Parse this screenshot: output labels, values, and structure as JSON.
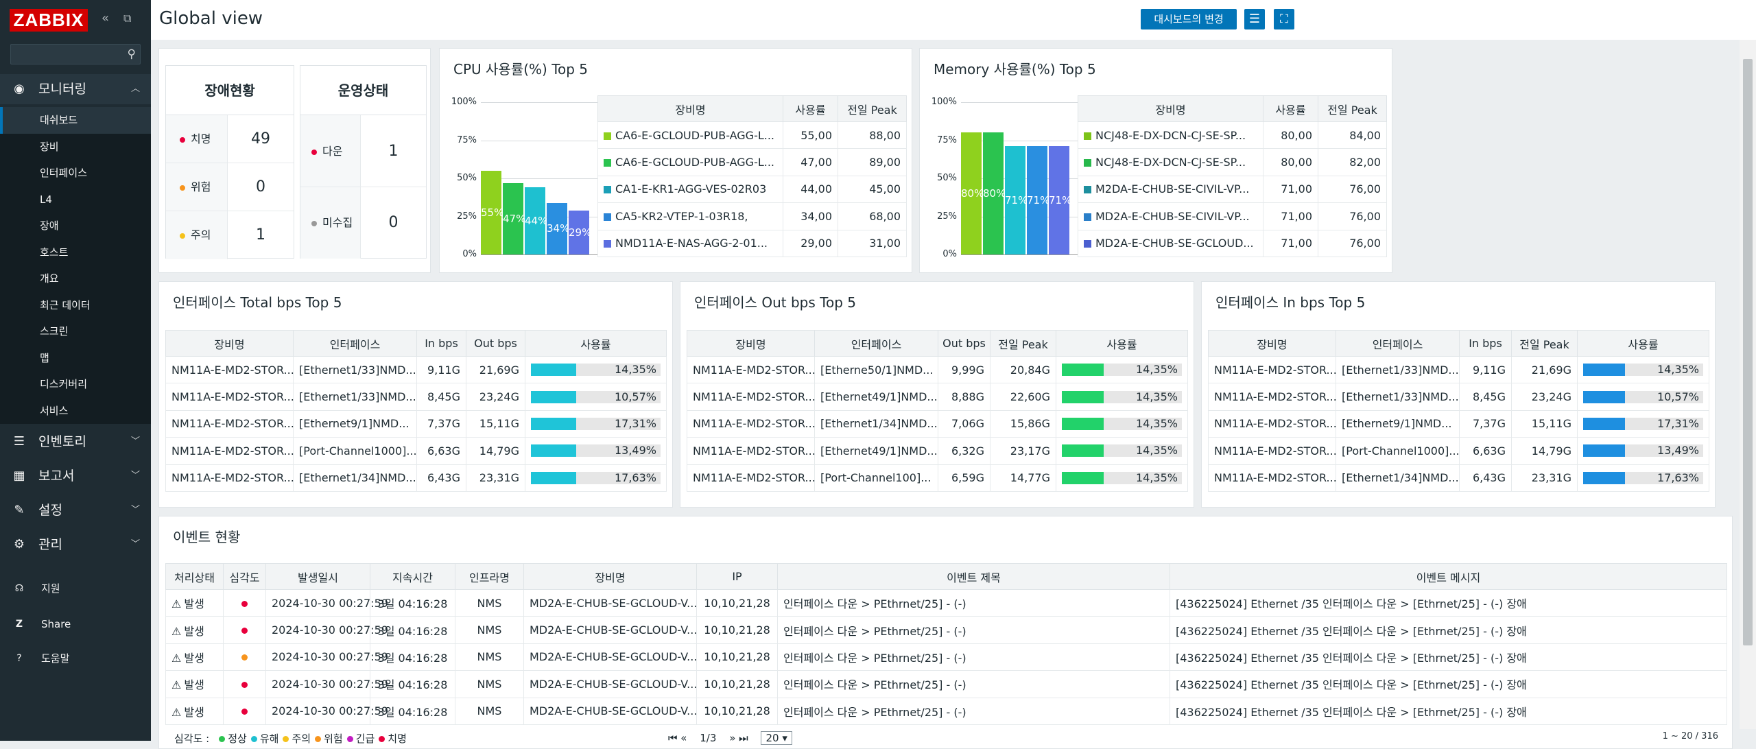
{
  "sidebar": {
    "logo": "ZABBIX",
    "collapse_icon": "collapse-icon",
    "kiosk_icon": "kiosk-icon",
    "search": {
      "value": "",
      "placeholder": ""
    },
    "monitoring": {
      "label": "모니터링",
      "items": [
        "대쉬보드",
        "장비",
        "인터페이스",
        "L4",
        "장애",
        "호스트",
        "개요",
        "최근 데이터",
        "스크린",
        "맵",
        "디스커버리",
        "서비스"
      ],
      "active": "대쉬보드"
    },
    "sections": [
      "인벤토리",
      "보고서",
      "설정",
      "관리"
    ],
    "footer": [
      "지원",
      "Share",
      "도움말"
    ]
  },
  "header": {
    "title": "Global view",
    "change_button": "대시보드의 변경",
    "menu_icon": "menu-icon",
    "fullscreen_icon": "fullscreen-icon"
  },
  "problem_status": {
    "title": "장애현황",
    "rows": [
      {
        "label": "치명",
        "value": "49",
        "color": "#e45959"
      },
      {
        "label": "위험",
        "value": "0",
        "color": "#f7941d"
      },
      {
        "label": "주의",
        "value": "1",
        "color": "#f5c21b"
      }
    ]
  },
  "op_status": {
    "title": "운영상태",
    "rows": [
      {
        "label": "다운",
        "value": "1",
        "color": "#e45959"
      },
      {
        "label": "미수집",
        "value": "0",
        "color": "#999999"
      }
    ]
  },
  "cpu": {
    "title": "CPU 사용률(%) Top 5",
    "cols": [
      "장비명",
      "사용률",
      "전일 Peak"
    ],
    "rows": [
      {
        "name": "CA6-E-GCLOUD-PUB-AGG-L...",
        "use": "55,00",
        "peak": "88,00",
        "color": "#8fd11e"
      },
      {
        "name": "CA6-E-GCLOUD-PUB-AGG-L...",
        "use": "47,00",
        "peak": "89,00",
        "color": "#2bc34f"
      },
      {
        "name": "CA1-E-KR1-AGG-VES-02R03",
        "use": "44,00",
        "peak": "45,00",
        "color": "#1b9fb7"
      },
      {
        "name": "CA5-KR2-VTEP-1-03R18,",
        "use": "34,00",
        "peak": "68,00",
        "color": "#2a84d6"
      },
      {
        "name": "NMD11A-E-NAS-AGG-2-01...",
        "use": "29,00",
        "peak": "31,00",
        "color": "#5b6ee0"
      }
    ]
  },
  "memory": {
    "title": "Memory 사용률(%) Top 5",
    "cols": [
      "장비명",
      "사용률",
      "전일 Peak"
    ],
    "rows": [
      {
        "name": "NCJ48-E-DX-DCN-CJ-SE-SP...",
        "use": "80,00",
        "peak": "84,00",
        "color": "#7cc319"
      },
      {
        "name": "NCJ48-E-DX-DCN-CJ-SE-SP...",
        "use": "80,00",
        "peak": "82,00",
        "color": "#27b84b"
      },
      {
        "name": "M2DA-E-CHUB-SE-CIVIL-VP...",
        "use": "71,00",
        "peak": "76,00",
        "color": "#1d8f9e"
      },
      {
        "name": "MD2A-E-CHUB-SE-CIVIL-VP...",
        "use": "71,00",
        "peak": "76,00",
        "color": "#2a7fc9"
      },
      {
        "name": "MD2A-E-CHUB-SE-GCLOUD...",
        "use": "71,00",
        "peak": "76,00",
        "color": "#4b5fd0"
      }
    ]
  },
  "chart_data": [
    {
      "type": "bar",
      "title": "CPU 사용률(%) Top 5",
      "categories": [
        "CA6-E-GCLOUD-PUB-AGG-L...",
        "CA6-E-GCLOUD-PUB-AGG-L...",
        "CA1-E-KR1-AGG-VES-02R03",
        "CA5-KR2-VTEP-1-03R18,",
        "NMD11A-E-NAS-AGG-2-01..."
      ],
      "values": [
        55,
        47,
        44,
        34,
        29
      ],
      "labels": [
        "55%",
        "47%",
        "44%",
        "34%",
        "29%"
      ],
      "colors": [
        "#8fd11e",
        "#2bc34f",
        "#1ec0d0",
        "#2a8fe0",
        "#6073e6"
      ],
      "yticks": [
        "100%",
        "75%",
        "50%",
        "25%",
        "0%"
      ],
      "ylim": [
        0,
        100
      ]
    },
    {
      "type": "bar",
      "title": "Memory 사용률(%) Top 5",
      "categories": [
        "NCJ48-E-DX-DCN-CJ-SE-SP...",
        "NCJ48-E-DX-DCN-CJ-SE-SP...",
        "M2DA-E-CHUB-SE-CIVIL-VP...",
        "MD2A-E-CHUB-SE-CIVIL-VP...",
        "MD2A-E-CHUB-SE-GCLOUD..."
      ],
      "values": [
        80,
        80,
        71,
        71,
        71
      ],
      "labels": [
        "80%",
        "80%",
        "71%",
        "71%",
        "71%"
      ],
      "colors": [
        "#8fd11e",
        "#2bc34f",
        "#1ec0d0",
        "#2a8fe0",
        "#6073e6"
      ],
      "yticks": [
        "100%",
        "75%",
        "50%",
        "25%",
        "0%"
      ],
      "ylim": [
        0,
        100
      ]
    }
  ],
  "if_total": {
    "title": "인터페이스 Total bps Top 5",
    "cols": [
      "장비명",
      "인터페이스",
      "In bps",
      "Out bps",
      "사용률"
    ],
    "bar_color": "#1fc4d8",
    "rows": [
      {
        "host": "NM11A-E-MD2-STOR...",
        "iface": "[Ethernet1/33]NMD...",
        "in": "9,11G",
        "out": "21,69G",
        "pct": "14,35%",
        "v": 14.35
      },
      {
        "host": "NM11A-E-MD2-STOR...",
        "iface": "[Ethernet1/33]NMD...",
        "in": "8,45G",
        "out": "23,24G",
        "pct": "10,57%",
        "v": 10.57
      },
      {
        "host": "NM11A-E-MD2-STOR...",
        "iface": "[Ethernet9/1]NMD...",
        "in": "7,37G",
        "out": "15,11G",
        "pct": "17,31%",
        "v": 17.31
      },
      {
        "host": "NM11A-E-MD2-STOR...",
        "iface": "[Port-Channel1000]...",
        "in": "6,63G",
        "out": "14,79G",
        "pct": "13,49%",
        "v": 13.49
      },
      {
        "host": "NM11A-E-MD2-STOR...",
        "iface": "[Ethernet1/34]NMD...",
        "in": "6,43G",
        "out": "23,31G",
        "pct": "17,63%",
        "v": 17.63
      }
    ]
  },
  "if_out": {
    "title": "인터페이스 Out bps Top 5",
    "cols": [
      "장비명",
      "인터페이스",
      "Out bps",
      "전일 Peak",
      "사용률"
    ],
    "bar_color": "#22d26a",
    "rows": [
      {
        "host": "NM11A-E-MD2-STOR...",
        "iface": "[Etherne50/1]NMD...",
        "a": "9,99G",
        "b": "20,84G",
        "pct": "14,35%",
        "v": 14.35
      },
      {
        "host": "NM11A-E-MD2-STOR...",
        "iface": "[Ethernet49/1]NMD...",
        "a": "8,88G",
        "b": "22,60G",
        "pct": "14,35%",
        "v": 14.35
      },
      {
        "host": "NM11A-E-MD2-STOR...",
        "iface": "[Ethernet1/34]NMD...",
        "a": "7,06G",
        "b": "15,86G",
        "pct": "14,35%",
        "v": 14.35
      },
      {
        "host": "NM11A-E-MD2-STOR...",
        "iface": "[Ethernet49/1]NMD...",
        "a": "6,32G",
        "b": "23,17G",
        "pct": "14,35%",
        "v": 14.35
      },
      {
        "host": "NM11A-E-MD2-STOR...",
        "iface": "[Port-Channel100]...",
        "a": "6,59G",
        "b": "14,77G",
        "pct": "14,35%",
        "v": 14.35
      }
    ]
  },
  "if_in": {
    "title": "인터페이스 In bps Top 5",
    "cols": [
      "장비명",
      "인터페이스",
      "In bps",
      "전일 Peak",
      "사용률"
    ],
    "bar_color": "#1e8fe0",
    "rows": [
      {
        "host": "NM11A-E-MD2-STOR...",
        "iface": "[Ethernet1/33]NMD...",
        "a": "9,11G",
        "b": "21,69G",
        "pct": "14,35%",
        "v": 14.35
      },
      {
        "host": "NM11A-E-MD2-STOR...",
        "iface": "[Ethernet1/33]NMD...",
        "a": "8,45G",
        "b": "23,24G",
        "pct": "10,57%",
        "v": 10.57
      },
      {
        "host": "NM11A-E-MD2-STOR...",
        "iface": "[Ethernet9/1]NMD...",
        "a": "7,37G",
        "b": "15,11G",
        "pct": "17,31%",
        "v": 17.31
      },
      {
        "host": "NM11A-E-MD2-STOR...",
        "iface": "[Port-Channel1000]...",
        "a": "6,63G",
        "b": "14,79G",
        "pct": "13,49%",
        "v": 13.49
      },
      {
        "host": "NM11A-E-MD2-STOR...",
        "iface": "[Ethernet1/34]NMD...",
        "a": "6,43G",
        "b": "23,31G",
        "pct": "17,63%",
        "v": 17.63
      }
    ]
  },
  "events": {
    "title": "이벤트 현황",
    "cols": [
      "처리상태",
      "심각도",
      "발생일시",
      "지속시간",
      "인프라명",
      "장비명",
      "IP",
      "이벤트 제목",
      "이벤트 메시지"
    ],
    "rows": [
      {
        "status": "발생",
        "sev": "#e8003c",
        "time": "2024-10-30  00:27:59",
        "dur": "3일  04:16:28",
        "infra": "NMS",
        "host": "MD2A-E-CHUB-SE-GCLOUD-V...",
        "ip": "10,10,21,28",
        "title": "인터페이스 다운 > PEthrnet/25] - (-)",
        "msg": "[436225024] Ethernet /35 인터페이스 다운  >  [Ethrnet/25] - (-) 장애"
      },
      {
        "status": "발생",
        "sev": "#e8003c",
        "time": "2024-10-30  00:27:59",
        "dur": "3일  04:16:28",
        "infra": "NMS",
        "host": "MD2A-E-CHUB-SE-GCLOUD-V...",
        "ip": "10,10,21,28",
        "title": "인터페이스 다운 > PEthrnet/25] - (-)",
        "msg": "[436225024] Ethernet /35 인터페이스 다운  >  [Ethrnet/25] - (-) 장애"
      },
      {
        "status": "발생",
        "sev": "#f7941d",
        "time": "2024-10-30  00:27:59",
        "dur": "3일  04:16:28",
        "infra": "NMS",
        "host": "MD2A-E-CHUB-SE-GCLOUD-V...",
        "ip": "10,10,21,28",
        "title": "인터페이스 다운 > PEthrnet/25] - (-)",
        "msg": "[436225024] Ethernet /35 인터페이스 다운  >  [Ethrnet/25] - (-) 장애"
      },
      {
        "status": "발생",
        "sev": "#e8003c",
        "time": "2024-10-30  00:27:59",
        "dur": "3일  04:16:28",
        "infra": "NMS",
        "host": "MD2A-E-CHUB-SE-GCLOUD-V...",
        "ip": "10,10,21,28",
        "title": "인터페이스 다운 > PEthrnet/25] - (-)",
        "msg": "[436225024] Ethernet /35 인터페이스 다운  >  [Ethrnet/25] - (-) 장애"
      },
      {
        "status": "발생",
        "sev": "#e8003c",
        "time": "2024-10-30  00:27:59",
        "dur": "3일  04:16:28",
        "infra": "NMS",
        "host": "MD2A-E-CHUB-SE-GCLOUD-V...",
        "ip": "10,10,21,28",
        "title": "인터페이스 다운 > PEthrnet/25] - (-)",
        "msg": "[436225024] Ethernet /35 인터페이스 다운  >  [Ethrnet/25] - (-) 장애"
      }
    ],
    "legend_label": "심각도 :",
    "legend": [
      {
        "label": "정상",
        "color": "#2bc34f"
      },
      {
        "label": "유해",
        "color": "#1ec0d0"
      },
      {
        "label": "주의",
        "color": "#f5c21b"
      },
      {
        "label": "위험",
        "color": "#f7941d"
      },
      {
        "label": "긴급",
        "color": "#c21dc2"
      },
      {
        "label": "치명",
        "color": "#e8003c"
      }
    ],
    "pager": "1/3",
    "per_page": "20",
    "count": "1 ~ 20 / 316"
  }
}
